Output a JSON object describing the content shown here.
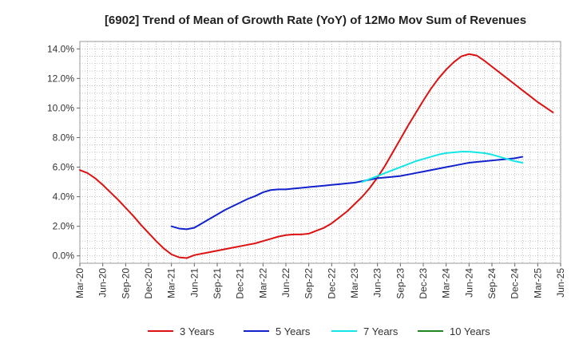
{
  "chart_data": {
    "type": "line",
    "title": "[6902]  Trend of Mean of Growth Rate (YoY) of 12Mo Mov Sum of Revenues",
    "xlabel": "",
    "ylabel": "",
    "ylim": [
      -0.5,
      14.5
    ],
    "y_ticks": [
      0,
      2,
      4,
      6,
      8,
      10,
      12,
      14
    ],
    "y_tick_labels": [
      "0.0%",
      "2.0%",
      "4.0%",
      "6.0%",
      "8.0%",
      "10.0%",
      "12.0%",
      "14.0%"
    ],
    "x_tick_labels": [
      "Mar-20",
      "Jun-20",
      "Sep-20",
      "Dec-20",
      "Mar-21",
      "Jun-21",
      "Sep-21",
      "Dec-21",
      "Mar-22",
      "Jun-22",
      "Sep-22",
      "Dec-22",
      "Mar-23",
      "Jun-23",
      "Sep-23",
      "Dec-23",
      "Mar-24",
      "Jun-24",
      "Sep-24",
      "Dec-24",
      "Mar-25",
      "Jun-25"
    ],
    "grid": true,
    "legend_position": "bottom",
    "series": [
      {
        "name": "3 Years",
        "color": "#dd1111",
        "points": [
          [
            0,
            5.8
          ],
          [
            1,
            5.6
          ],
          [
            2,
            5.25
          ],
          [
            3,
            4.8
          ],
          [
            4,
            4.3
          ],
          [
            5,
            3.8
          ],
          [
            6,
            3.25
          ],
          [
            7,
            2.7
          ],
          [
            8,
            2.1
          ],
          [
            9,
            1.55
          ],
          [
            10,
            1.0
          ],
          [
            11,
            0.5
          ],
          [
            12,
            0.1
          ],
          [
            13,
            -0.1
          ],
          [
            14,
            -0.15
          ],
          [
            15,
            0.05
          ],
          [
            16,
            0.15
          ],
          [
            17,
            0.25
          ],
          [
            18,
            0.35
          ],
          [
            19,
            0.45
          ],
          [
            20,
            0.55
          ],
          [
            21,
            0.65
          ],
          [
            22,
            0.75
          ],
          [
            23,
            0.85
          ],
          [
            24,
            1.0
          ],
          [
            25,
            1.15
          ],
          [
            26,
            1.3
          ],
          [
            27,
            1.4
          ],
          [
            28,
            1.45
          ],
          [
            29,
            1.45
          ],
          [
            30,
            1.5
          ],
          [
            31,
            1.7
          ],
          [
            32,
            1.9
          ],
          [
            33,
            2.2
          ],
          [
            34,
            2.6
          ],
          [
            35,
            3.0
          ],
          [
            36,
            3.5
          ],
          [
            37,
            4.0
          ],
          [
            38,
            4.6
          ],
          [
            39,
            5.3
          ],
          [
            40,
            6.1
          ],
          [
            41,
            7.0
          ],
          [
            42,
            7.9
          ],
          [
            43,
            8.8
          ],
          [
            44,
            9.65
          ],
          [
            45,
            10.5
          ],
          [
            46,
            11.3
          ],
          [
            47,
            12.0
          ],
          [
            48,
            12.6
          ],
          [
            49,
            13.1
          ],
          [
            50,
            13.5
          ],
          [
            51,
            13.65
          ],
          [
            52,
            13.55
          ],
          [
            53,
            13.2
          ],
          [
            54,
            12.8
          ],
          [
            55,
            12.4
          ],
          [
            56,
            12.0
          ],
          [
            57,
            11.6
          ],
          [
            58,
            11.2
          ],
          [
            59,
            10.8
          ],
          [
            60,
            10.4
          ],
          [
            61,
            10.05
          ],
          [
            62,
            9.7
          ]
        ]
      },
      {
        "name": "5 Years",
        "color": "#1122cc",
        "points": [
          [
            12,
            2.0
          ],
          [
            13,
            1.85
          ],
          [
            14,
            1.8
          ],
          [
            15,
            1.9
          ],
          [
            16,
            2.2
          ],
          [
            17,
            2.5
          ],
          [
            18,
            2.8
          ],
          [
            19,
            3.1
          ],
          [
            20,
            3.35
          ],
          [
            21,
            3.6
          ],
          [
            22,
            3.85
          ],
          [
            23,
            4.05
          ],
          [
            24,
            4.3
          ],
          [
            25,
            4.45
          ],
          [
            26,
            4.5
          ],
          [
            27,
            4.5
          ],
          [
            28,
            4.55
          ],
          [
            29,
            4.6
          ],
          [
            30,
            4.65
          ],
          [
            31,
            4.7
          ],
          [
            32,
            4.75
          ],
          [
            33,
            4.8
          ],
          [
            34,
            4.85
          ],
          [
            35,
            4.9
          ],
          [
            36,
            4.95
          ],
          [
            37,
            5.05
          ],
          [
            38,
            5.15
          ],
          [
            39,
            5.25
          ],
          [
            40,
            5.3
          ],
          [
            41,
            5.35
          ],
          [
            42,
            5.4
          ],
          [
            43,
            5.5
          ],
          [
            44,
            5.6
          ],
          [
            45,
            5.7
          ],
          [
            46,
            5.8
          ],
          [
            47,
            5.9
          ],
          [
            48,
            6.0
          ],
          [
            49,
            6.1
          ],
          [
            50,
            6.2
          ],
          [
            51,
            6.3
          ],
          [
            52,
            6.35
          ],
          [
            53,
            6.4
          ],
          [
            54,
            6.45
          ],
          [
            55,
            6.5
          ],
          [
            56,
            6.55
          ],
          [
            57,
            6.6
          ],
          [
            58,
            6.7
          ]
        ]
      },
      {
        "name": "7 Years",
        "color": "#11e5e5",
        "points": [
          [
            37,
            5.0
          ],
          [
            38,
            5.2
          ],
          [
            39,
            5.4
          ],
          [
            40,
            5.6
          ],
          [
            41,
            5.8
          ],
          [
            42,
            6.0
          ],
          [
            43,
            6.2
          ],
          [
            44,
            6.4
          ],
          [
            45,
            6.55
          ],
          [
            46,
            6.7
          ],
          [
            47,
            6.85
          ],
          [
            48,
            6.95
          ],
          [
            49,
            7.0
          ],
          [
            50,
            7.05
          ],
          [
            51,
            7.05
          ],
          [
            52,
            7.0
          ],
          [
            53,
            6.95
          ],
          [
            54,
            6.85
          ],
          [
            55,
            6.7
          ],
          [
            56,
            6.55
          ],
          [
            57,
            6.4
          ],
          [
            58,
            6.3
          ]
        ]
      },
      {
        "name": "10 Years",
        "color": "#228822",
        "points": []
      }
    ]
  }
}
